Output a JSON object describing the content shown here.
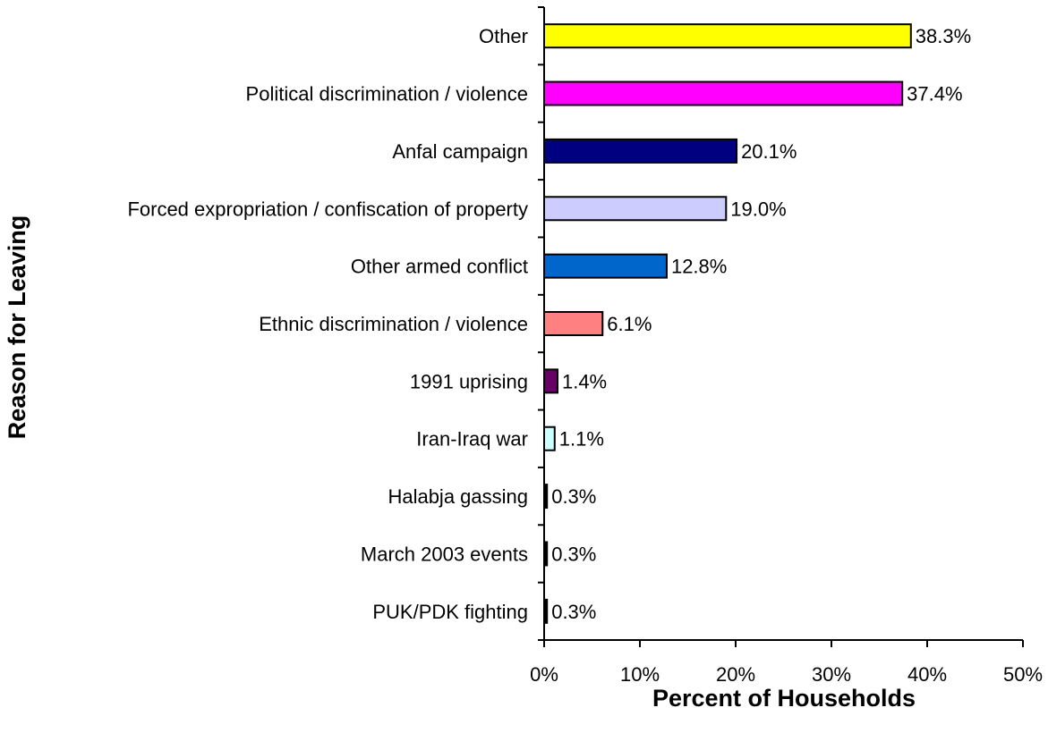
{
  "chart_data": {
    "type": "bar",
    "orientation": "horizontal",
    "xlabel": "Percent of Households",
    "ylabel": "Reason for Leaving",
    "xlim": [
      0,
      50
    ],
    "xticks": [
      "0%",
      "10%",
      "20%",
      "30%",
      "40%",
      "50%"
    ],
    "grid": false,
    "legend": "none",
    "categories": [
      "Other",
      "Political discrimination / violence",
      "Anfal campaign",
      "Forced expropriation / confiscation of property",
      "Other armed conflict",
      "Ethnic discrimination / violence",
      "1991 uprising",
      "Iran-Iraq war",
      "Halabja gassing",
      "March 2003 events",
      "PUK/PDK fighting"
    ],
    "values": [
      38.3,
      37.4,
      20.1,
      19.0,
      12.8,
      6.1,
      1.4,
      1.1,
      0.3,
      0.3,
      0.3
    ],
    "value_labels": [
      "38.3%",
      "37.4%",
      "20.1%",
      "19.0%",
      "12.8%",
      "6.1%",
      "1.4%",
      "1.1%",
      "0.3%",
      "0.3%",
      "0.3%"
    ],
    "colors": [
      "#FFFF00",
      "#FF00FF",
      "#000080",
      "#CCCCFF",
      "#0066CC",
      "#FF8080",
      "#660066",
      "#CCFFFF",
      "#000000",
      "#000000",
      "#000000"
    ]
  }
}
